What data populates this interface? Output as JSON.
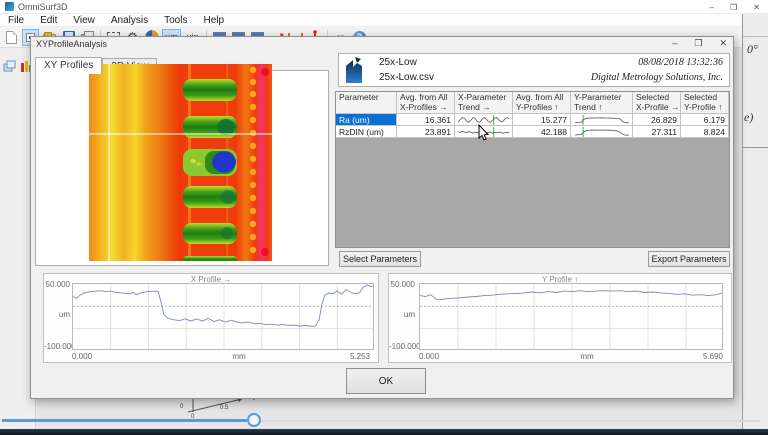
{
  "app": {
    "title": "OmniSurf3D",
    "menus": [
      "File",
      "Edit",
      "View",
      "Analysis",
      "Tools",
      "Help"
    ],
    "controls": {
      "min": "–",
      "max": "❒",
      "close": "✕"
    },
    "toolbar": {
      "um_label": "µm",
      "uin_label": "µin",
      "infinity_label": "∞",
      "help_label": "?",
      "gear_glyph": "⚙"
    }
  },
  "background": {
    "angle_text": "0°",
    "partial_text": "e)",
    "axis_labels": {
      "a": "0",
      "b": "0",
      "c": "0.5"
    }
  },
  "dialog": {
    "title": "XYProfileAnalysis",
    "controls": {
      "min": "–",
      "max": "❒",
      "close": "✕"
    },
    "tabs": [
      {
        "label": "XY Profiles",
        "active": true
      },
      {
        "label": "3D View",
        "active": false
      }
    ],
    "header": {
      "dataset_name": "25x-Low",
      "file_name": "25x-Low.csv",
      "datetime": "08/08/2018  13:32:36",
      "company": "Digital Metrology Solutions, Inc."
    },
    "table": {
      "columns": [
        {
          "h1": "Parameter",
          "h2": ""
        },
        {
          "h1": "Avg. from All",
          "h2": "X-Profiles →"
        },
        {
          "h1": "X-Parameter",
          "h2": "Trend →"
        },
        {
          "h1": "Avg. from All",
          "h2": "Y-Profiles ↑"
        },
        {
          "h1": "Y-Parameter",
          "h2": "Trend ↑"
        },
        {
          "h1": "Selected",
          "h2": "X-Profile →"
        },
        {
          "h1": "Selected",
          "h2": "Y-Profile ↑"
        }
      ],
      "rows": [
        {
          "parameter": "Ra (um)",
          "selected": true,
          "avg_x": "16.361",
          "avg_y": "15.277",
          "sel_x": "26.829",
          "sel_y": "6.179",
          "trend_x": {
            "cursor": 0.66,
            "points": [
              0.75,
              0.45,
              0.2,
              0.3,
              0.65,
              0.8,
              0.5,
              0.2,
              0.3,
              0.7,
              0.8,
              0.45,
              0.2,
              0.35,
              0.7,
              0.8,
              0.5,
              0.25,
              0.2,
              0.5,
              0.75,
              0.6,
              0.3,
              0.2,
              0.45,
              0.7
            ]
          },
          "trend_y": {
            "cursor": 0.15,
            "points": [
              0.8,
              0.82,
              0.8,
              0.78,
              0.45,
              0.3,
              0.28,
              0.25,
              0.27,
              0.25,
              0.24,
              0.25,
              0.23,
              0.25,
              0.24,
              0.26,
              0.25,
              0.27,
              0.26,
              0.3,
              0.32,
              0.38,
              0.7,
              0.8,
              0.85,
              0.82
            ]
          }
        },
        {
          "parameter": "RzDIN (um)",
          "selected": false,
          "avg_x": "23.891",
          "avg_y": "42.188",
          "sel_x": "27.311",
          "sel_y": "8.824",
          "trend_x": {
            "cursor": 0.66,
            "points": [
              0.45,
              0.55,
              0.4,
              0.5,
              0.6,
              0.45,
              0.55,
              0.65,
              0.5,
              0.6,
              0.45,
              0.55,
              0.65,
              0.55,
              0.6,
              0.5,
              0.65,
              0.55,
              0.6,
              0.5,
              0.6,
              0.65,
              0.55,
              0.6,
              0.5,
              0.55
            ]
          },
          "trend_y": {
            "cursor": 0.15,
            "points": [
              0.88,
              0.85,
              0.82,
              0.8,
              0.5,
              0.35,
              0.3,
              0.28,
              0.26,
              0.27,
              0.25,
              0.26,
              0.27,
              0.25,
              0.27,
              0.28,
              0.27,
              0.3,
              0.32,
              0.35,
              0.4,
              0.55,
              0.78,
              0.88,
              0.9,
              0.87
            ]
          }
        }
      ]
    },
    "buttons": {
      "select": "Select Parameters",
      "export": "Export Parameters",
      "ok": "OK"
    }
  },
  "chart_data": [
    {
      "name": "x-profile",
      "type": "line",
      "title": "X Profile →",
      "ylabel": "um",
      "xlabel": "mm",
      "xlim": [
        0,
        5.253
      ],
      "ylim": [
        -100,
        50
      ],
      "ytick_labels": [
        "50.000",
        "-100.000"
      ],
      "xtick_labels": [
        "0.000",
        "5.253"
      ],
      "grid": true,
      "zero_line": 0,
      "line_color": "#7a86c8",
      "x": [
        0,
        0.06,
        0.12,
        0.2,
        0.3,
        0.4,
        0.5,
        0.55,
        0.65,
        0.75,
        0.85,
        0.95,
        1.05,
        1.1,
        1.2,
        1.3,
        1.4,
        1.48,
        1.52,
        1.58,
        1.65,
        1.75,
        1.85,
        1.95,
        2.05,
        2.15,
        2.25,
        2.35,
        2.45,
        2.55,
        2.65,
        2.75,
        2.85,
        2.95,
        3.05,
        3.15,
        3.25,
        3.35,
        3.45,
        3.55,
        3.65,
        3.75,
        3.85,
        3.95,
        4.05,
        4.15,
        4.22,
        4.28,
        4.33,
        4.38,
        4.45,
        4.52,
        4.6,
        4.67,
        4.75,
        4.82,
        4.9,
        4.98,
        5.05,
        5.12,
        5.18,
        5.253
      ],
      "y": [
        22,
        18,
        25,
        30,
        33,
        34,
        35,
        33,
        34,
        31,
        30,
        28,
        31,
        26,
        31,
        33,
        34,
        33,
        15,
        -18,
        -27,
        -30,
        -32,
        -28,
        -33,
        -28,
        -33,
        -27,
        -34,
        -30,
        -35,
        -31,
        -35,
        -37,
        -35,
        -39,
        -38,
        -41,
        -40,
        -42,
        -41,
        -43,
        -42,
        -44,
        -43,
        -45,
        -44,
        -30,
        5,
        25,
        30,
        28,
        34,
        27,
        38,
        32,
        28,
        30,
        43,
        48,
        44,
        46
      ]
    },
    {
      "name": "y-profile",
      "type": "line",
      "title": "Y Profile ↑",
      "ylabel": "um",
      "xlabel": "mm",
      "xlim": [
        0,
        5.69
      ],
      "ylim": [
        -100,
        50
      ],
      "ytick_labels": [
        "50.000",
        "-100.000"
      ],
      "xtick_labels": [
        "0.000",
        "5.690"
      ],
      "grid": true,
      "zero_line": 0,
      "line_color": "#7a86c8",
      "x": [
        0,
        0.1,
        0.2,
        0.3,
        0.4,
        0.5,
        0.6,
        0.75,
        0.9,
        1.05,
        1.2,
        1.35,
        1.5,
        1.65,
        1.8,
        1.95,
        2.1,
        2.25,
        2.4,
        2.55,
        2.7,
        2.85,
        3,
        3.15,
        3.3,
        3.45,
        3.6,
        3.75,
        3.9,
        4.05,
        4.2,
        4.35,
        4.5,
        4.65,
        4.8,
        4.95,
        5.1,
        5.25,
        5.4,
        5.55,
        5.69
      ],
      "y": [
        24,
        22,
        26,
        16,
        15,
        17,
        18,
        19,
        21,
        22,
        24,
        25,
        27,
        28,
        29,
        30,
        32,
        30,
        33,
        31,
        34,
        33,
        35,
        33,
        34,
        35,
        34,
        35,
        33,
        34,
        31,
        32,
        30,
        29,
        27,
        28,
        25,
        26,
        24,
        26,
        31
      ]
    }
  ]
}
